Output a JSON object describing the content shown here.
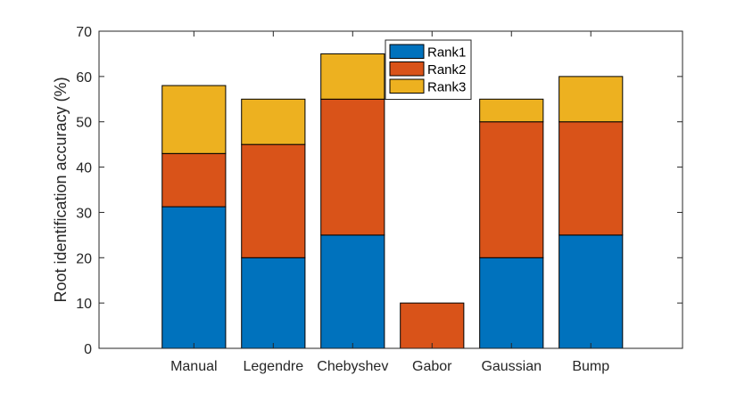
{
  "chart_data": {
    "type": "bar",
    "stacked": true,
    "title": "",
    "xlabel": "",
    "ylabel": "Root identification accuracy (%)",
    "ylim": [
      0,
      70
    ],
    "yticks": [
      0,
      10,
      20,
      30,
      40,
      50,
      60,
      70
    ],
    "categories": [
      "Manual",
      "Legendre",
      "Chebyshev",
      "Gabor",
      "Gaussian",
      "Bump"
    ],
    "series": [
      {
        "name": "Rank1",
        "color": "#0072BD",
        "values": [
          31.25,
          20,
          25,
          0,
          20,
          25
        ]
      },
      {
        "name": "Rank2",
        "color": "#D95319",
        "values": [
          11.75,
          25,
          30,
          10,
          30,
          25
        ]
      },
      {
        "name": "Rank3",
        "color": "#EDB120",
        "values": [
          15,
          10,
          10,
          0,
          5,
          10
        ]
      }
    ],
    "legend_position": "top-center",
    "grid": false
  }
}
